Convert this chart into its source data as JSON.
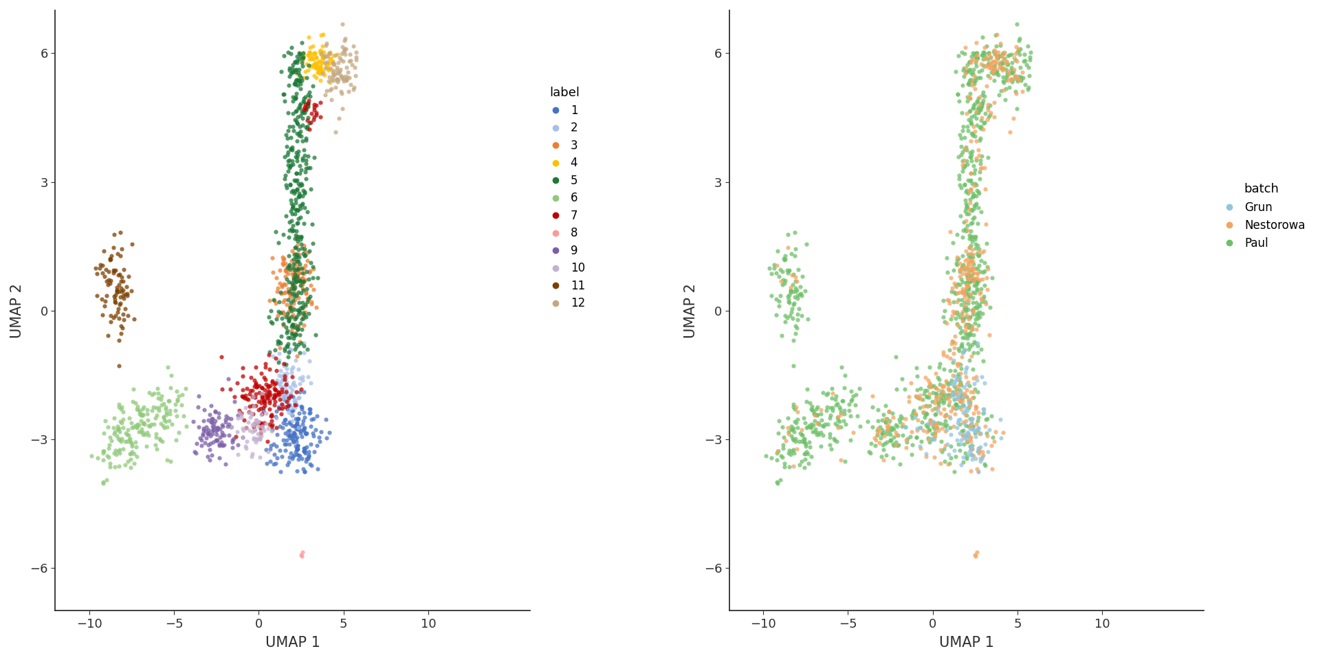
{
  "label_colors": {
    "1": "#4472C4",
    "2": "#A9BFE8",
    "3": "#ED7D31",
    "4": "#FFC000",
    "5": "#1B7837",
    "6": "#90C97A",
    "7": "#C00000",
    "8": "#FF9999",
    "9": "#7B5EA7",
    "10": "#C4B0D0",
    "11": "#7B3F00",
    "12": "#C4A882"
  },
  "batch_colors": {
    "Grun": "#92C5DE",
    "Nestorowa": "#F4A460",
    "Paul": "#6DBF67"
  },
  "xlim": [
    -12,
    16
  ],
  "ylim": [
    -7,
    7
  ],
  "xticks": [
    -10,
    -5,
    0,
    5,
    10
  ],
  "yticks": [
    -6,
    -3,
    0,
    3,
    6
  ],
  "xlabel": "UMAP 1",
  "ylabel": "UMAP 2",
  "legend_label_title": "label",
  "legend_batch_title": "batch",
  "marker_size": 20,
  "alpha": 0.75,
  "background_color": "#FFFFFF",
  "axis_color": "#2F2F2F",
  "font_size": 13,
  "legend_font_size": 12,
  "legend_title_font_size": 13
}
